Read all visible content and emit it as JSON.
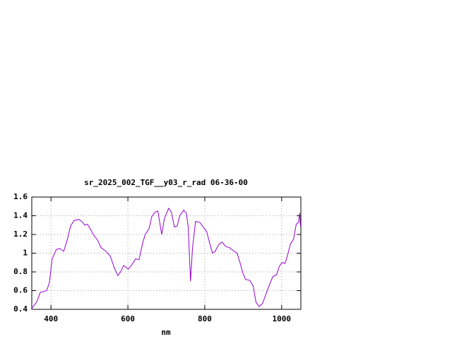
{
  "chart_data": {
    "type": "line",
    "title": "sr_2025_002_TGF__y03_r_rad 06-36-00",
    "x_label": "nm",
    "x": [
      350,
      363,
      372,
      381,
      389,
      396,
      403,
      414,
      423,
      433,
      442,
      451,
      460,
      473,
      480,
      488,
      495,
      502,
      510,
      521,
      530,
      543,
      554,
      565,
      574,
      581,
      589,
      601,
      611,
      620,
      629,
      638,
      645,
      655,
      662,
      671,
      678,
      688,
      695,
      706,
      713,
      721,
      728,
      735,
      745,
      752,
      757,
      763,
      768,
      776,
      787,
      796,
      805,
      812,
      820,
      827,
      836,
      845,
      855,
      864,
      873,
      884,
      891,
      899,
      906,
      917,
      926,
      933,
      941,
      950,
      959,
      968,
      977,
      987,
      994,
      1001,
      1009,
      1016,
      1023,
      1031,
      1038,
      1044,
      1047,
      1049
    ],
    "values": [
      0.41,
      0.48,
      0.58,
      0.59,
      0.6,
      0.69,
      0.94,
      1.04,
      1.05,
      1.02,
      1.14,
      1.29,
      1.35,
      1.36,
      1.34,
      1.3,
      1.31,
      1.26,
      1.2,
      1.14,
      1.06,
      1.02,
      0.97,
      0.84,
      0.76,
      0.8,
      0.87,
      0.83,
      0.88,
      0.94,
      0.93,
      1.1,
      1.2,
      1.26,
      1.39,
      1.44,
      1.45,
      1.2,
      1.37,
      1.48,
      1.44,
      1.28,
      1.29,
      1.4,
      1.46,
      1.43,
      1.28,
      0.7,
      1.05,
      1.34,
      1.33,
      1.28,
      1.23,
      1.12,
      1.0,
      1.02,
      1.09,
      1.12,
      1.07,
      1.06,
      1.03,
      1.0,
      0.91,
      0.79,
      0.72,
      0.71,
      0.65,
      0.48,
      0.43,
      0.46,
      0.56,
      0.66,
      0.75,
      0.77,
      0.86,
      0.9,
      0.89,
      0.99,
      1.1,
      1.15,
      1.31,
      1.33,
      1.43,
      1.29
    ],
    "color": "#9400d3",
    "xlim": [
      350,
      1050
    ],
    "xticks": [
      400,
      600,
      800,
      1000
    ],
    "ylim": [
      0.4,
      1.6
    ],
    "yticks": [
      0.4,
      0.6,
      0.8,
      1,
      1.2,
      1.4,
      1.6
    ],
    "grid": true
  }
}
